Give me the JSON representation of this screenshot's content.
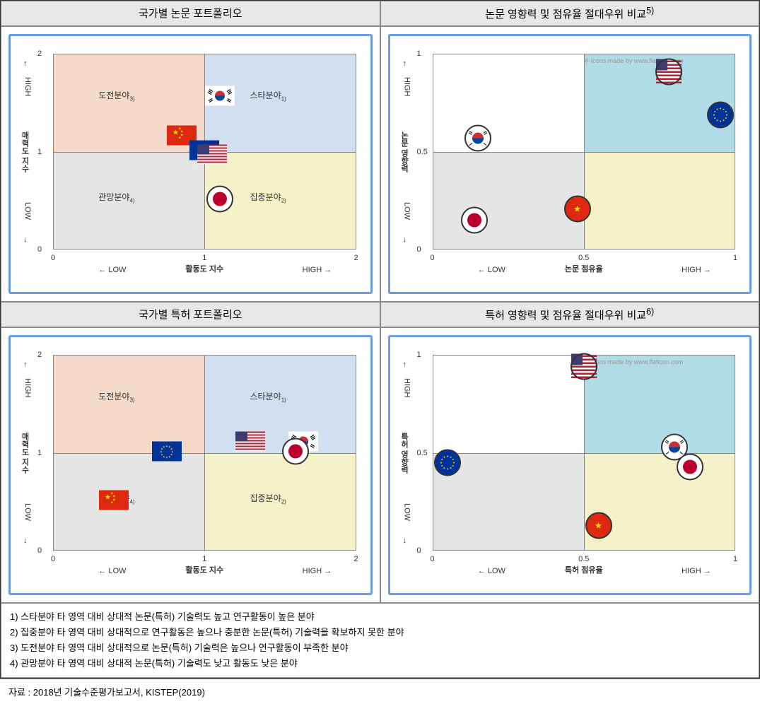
{
  "headers": {
    "tl": "국가별 논문 포트폴리오",
    "tr": "논문 영향력 및 점유율 절대우위 비교",
    "tr_sup": "5)",
    "bl": "국가별 특허 포트폴리오",
    "br": "특허 영향력 및 점유율 절대우위 비교",
    "br_sup": "6)"
  },
  "chart_tl": {
    "xlabel": "활동도 지수",
    "ylabel": "매력도 지수",
    "xrange": [
      0,
      2
    ],
    "yrange": [
      0,
      2
    ],
    "xticks": [
      0,
      1,
      2
    ],
    "yticks": [
      0,
      1,
      2
    ],
    "arrows": {
      "left": "← LOW",
      "right": "HIGH →",
      "down": "LOW ↓",
      "up": "HIGH ↑"
    },
    "quadrant_colors": {
      "tl": "#f5d9c9",
      "tr": "#d0e0f0",
      "bl": "#e5e5e5",
      "br": "#f5f2c9"
    },
    "quadrant_labels": {
      "tl": "도전분야",
      "tl_sup": "3)",
      "tr": "스타분야",
      "tr_sup": "1)",
      "bl": "관망분야",
      "bl_sup": "4)",
      "br": "집중분야",
      "br_sup": "2)"
    },
    "points": [
      {
        "country": "korea",
        "x": 1.1,
        "y": 1.55,
        "type": "flag"
      },
      {
        "country": "china",
        "x": 0.85,
        "y": 1.15,
        "type": "flag"
      },
      {
        "country": "eu",
        "x": 1.0,
        "y": 1.0,
        "type": "flag"
      },
      {
        "country": "usa",
        "x": 1.05,
        "y": 0.95,
        "type": "flag"
      },
      {
        "country": "japan",
        "x": 1.1,
        "y": 0.5,
        "type": "circle"
      }
    ]
  },
  "chart_tr": {
    "xlabel": "논문 점유율",
    "ylabel": "논문 영향력",
    "xrange": [
      0,
      1
    ],
    "yrange": [
      0,
      1
    ],
    "xticks": [
      0.0,
      0.5,
      1.0
    ],
    "yticks": [
      0.0,
      0.5,
      1.0
    ],
    "arrows": {
      "left": "← LOW",
      "right": "HIGH →",
      "down": "LOW ↓",
      "up": "HIGH ↑"
    },
    "quadrant_colors": {
      "tl": "#ffffff",
      "tr": "#b0dce8",
      "bl": "#e5e5e5",
      "br": "#f5f2c9"
    },
    "attribution": "※ Icons made by www.flaticon.com",
    "points": [
      {
        "country": "usa",
        "x": 0.78,
        "y": 0.9,
        "type": "circle"
      },
      {
        "country": "eu",
        "x": 0.95,
        "y": 0.68,
        "type": "circle"
      },
      {
        "country": "korea",
        "x": 0.15,
        "y": 0.56,
        "type": "circle"
      },
      {
        "country": "china",
        "x": 0.48,
        "y": 0.2,
        "type": "circle"
      },
      {
        "country": "japan",
        "x": 0.14,
        "y": 0.14,
        "type": "circle"
      }
    ]
  },
  "chart_bl": {
    "xlabel": "활동도 지수",
    "ylabel": "매력도 지수",
    "xrange": [
      0,
      2
    ],
    "yrange": [
      0,
      2
    ],
    "xticks": [
      0,
      1,
      2
    ],
    "yticks": [
      0,
      1,
      2
    ],
    "arrows": {
      "left": "← LOW",
      "right": "HIGH →",
      "down": "LOW ↓",
      "up": "HIGH ↑"
    },
    "quadrant_colors": {
      "tl": "#f5d9c9",
      "tr": "#d0e0f0",
      "bl": "#e5e5e5",
      "br": "#f5f2c9"
    },
    "quadrant_labels": {
      "tl": "도전분야",
      "tl_sup": "3)",
      "tr": "스타분야",
      "tr_sup": "1)",
      "bl": "관망분야",
      "bl_sup": "4)",
      "br": "집중분야",
      "br_sup": "2)"
    },
    "points": [
      {
        "country": "eu",
        "x": 0.75,
        "y": 1.0,
        "type": "flag"
      },
      {
        "country": "usa",
        "x": 1.3,
        "y": 1.1,
        "type": "flag"
      },
      {
        "country": "korea",
        "x": 1.65,
        "y": 1.1,
        "type": "flag"
      },
      {
        "country": "japan",
        "x": 1.6,
        "y": 1.0,
        "type": "circle"
      },
      {
        "country": "china",
        "x": 0.4,
        "y": 0.5,
        "type": "flag"
      }
    ]
  },
  "chart_br": {
    "xlabel": "특허 점유율",
    "ylabel": "특허 영향력",
    "xrange": [
      0,
      1
    ],
    "yrange": [
      0,
      1
    ],
    "xticks": [
      0.0,
      0.5,
      1.0
    ],
    "yticks": [
      0.0,
      0.5,
      1.0
    ],
    "arrows": {
      "left": "← LOW",
      "right": "HIGH →",
      "down": "LOW ↓",
      "up": "HIGH ↑"
    },
    "quadrant_colors": {
      "tl": "#ffffff",
      "tr": "#b0dce8",
      "bl": "#e5e5e5",
      "br": "#f5f2c9"
    },
    "attribution": "※ Icons made by www.flaticon.com",
    "points": [
      {
        "country": "usa",
        "x": 0.5,
        "y": 0.93,
        "type": "circle"
      },
      {
        "country": "korea",
        "x": 0.8,
        "y": 0.52,
        "type": "circle"
      },
      {
        "country": "eu",
        "x": 0.05,
        "y": 0.44,
        "type": "circle"
      },
      {
        "country": "japan",
        "x": 0.85,
        "y": 0.42,
        "type": "circle"
      },
      {
        "country": "china",
        "x": 0.55,
        "y": 0.12,
        "type": "circle"
      }
    ]
  },
  "flag_colors": {
    "korea": {
      "bg": "#ffffff",
      "accent1": "#cd2e3a",
      "accent2": "#0047a0"
    },
    "china": {
      "bg": "#de2910",
      "accent1": "#ffde00"
    },
    "usa": {
      "bg": "#ffffff",
      "accent1": "#b22234",
      "accent2": "#3c3b6e"
    },
    "eu": {
      "bg": "#003399",
      "accent1": "#ffcc00"
    },
    "japan": {
      "bg": "#ffffff",
      "accent1": "#bc002d"
    }
  },
  "circle_colors": {
    "korea": {
      "border": "#333",
      "fill_bg": "#ffffff",
      "dot": "#cd2e3a",
      "dot2": "#0047a0"
    },
    "china": {
      "border": "#333",
      "fill": "#de2910",
      "dot": "#ffde00"
    },
    "usa": {
      "border": "#333",
      "fill_bg": "#ffffff",
      "stripes": "#b22234",
      "canton": "#3c3b6e"
    },
    "eu": {
      "border": "#333",
      "fill": "#003399",
      "dot": "#ffcc00"
    },
    "japan": {
      "border": "#333",
      "fill_bg": "#ffffff",
      "dot": "#bc002d"
    }
  },
  "footnotes": [
    "1) 스타분야 타 영역 대비 상대적 논문(특허) 기술력도 높고 연구활동이 높은 분야",
    "2) 집중분야 타 영역 대비 상대적으로 연구활동은 높으나 충분한 논문(특허) 기술력을 확보하지 못한 분야",
    "3) 도전분야 타 영역 대비 상대적으로 논문(특허) 기술력은 높으나 연구활동이 부족한 분야",
    "4) 관망분야 타 영역 대비 상대적 논문(특허) 기술력도 낮고 활동도 낮은 분야"
  ],
  "source": "자료 : 2018년 기술수준평가보고서, KISTEP(2019)"
}
